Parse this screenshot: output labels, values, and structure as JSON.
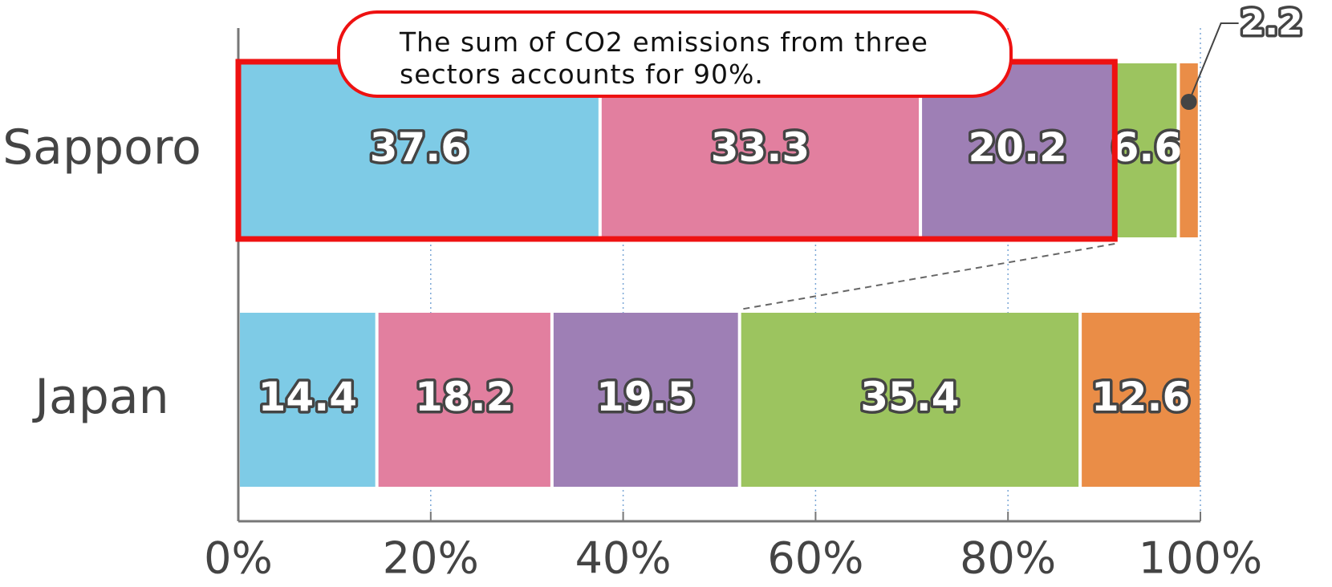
{
  "chart_data": {
    "type": "stacked-bar-horizontal",
    "annotation": "The sum of CO2 emissions from three sectors accounts for 90%.",
    "categories": [
      "Sapporo",
      "Japan"
    ],
    "series": [
      {
        "color": "#7ecbe6",
        "values": [
          37.6,
          14.4
        ]
      },
      {
        "color": "#e27f9f",
        "values": [
          33.3,
          18.2
        ]
      },
      {
        "color": "#9e7fb5",
        "values": [
          20.2,
          19.5
        ]
      },
      {
        "color": "#9cc45f",
        "values": [
          6.6,
          35.4
        ]
      },
      {
        "color": "#ea8d47",
        "values": [
          2.2,
          12.6
        ]
      }
    ],
    "xlim": [
      0,
      100
    ],
    "xticks": [
      {
        "value": 0,
        "label": "0%"
      },
      {
        "value": 20,
        "label": "20%"
      },
      {
        "value": 40,
        "label": "40%"
      },
      {
        "value": 60,
        "label": "60%"
      },
      {
        "value": 80,
        "label": "80%"
      },
      {
        "value": 100,
        "label": "100%"
      }
    ],
    "grid": true,
    "highlight_color": "#ee1111"
  }
}
